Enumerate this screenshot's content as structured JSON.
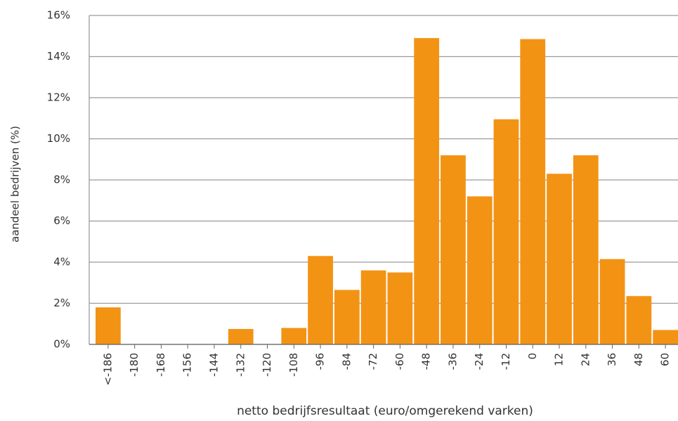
{
  "chart_data": {
    "type": "bar",
    "x_label": "netto bedrijfsresultaat (euro/omgerekend varken)",
    "y_label": "aandeel bedrijven (%)",
    "categories": [
      "<-186",
      "-180",
      "-168",
      "-156",
      "-144",
      "-132",
      "-120",
      "-108",
      "-96",
      "-84",
      "-72",
      "-60",
      "-48",
      "-36",
      "-24",
      "-12",
      "0",
      "12",
      "24",
      "36",
      "48",
      "60"
    ],
    "values": [
      1.8,
      0,
      0,
      0,
      0,
      0.75,
      0,
      0.8,
      4.3,
      2.65,
      3.6,
      3.5,
      14.9,
      9.2,
      7.2,
      10.95,
      14.85,
      8.3,
      9.2,
      4.15,
      2.35,
      0.7
    ],
    "color": "#f39314",
    "ylim": [
      0,
      16
    ],
    "yticks": [
      {
        "value": 0,
        "label": "0%"
      },
      {
        "value": 2,
        "label": "2%"
      },
      {
        "value": 4,
        "label": "4%"
      },
      {
        "value": 6,
        "label": "6%"
      },
      {
        "value": 8,
        "label": "8%"
      },
      {
        "value": 10,
        "label": "10%"
      },
      {
        "value": 12,
        "label": "12%"
      },
      {
        "value": 14,
        "label": "14%"
      },
      {
        "value": 16,
        "label": "16%"
      }
    ],
    "grid": true
  }
}
